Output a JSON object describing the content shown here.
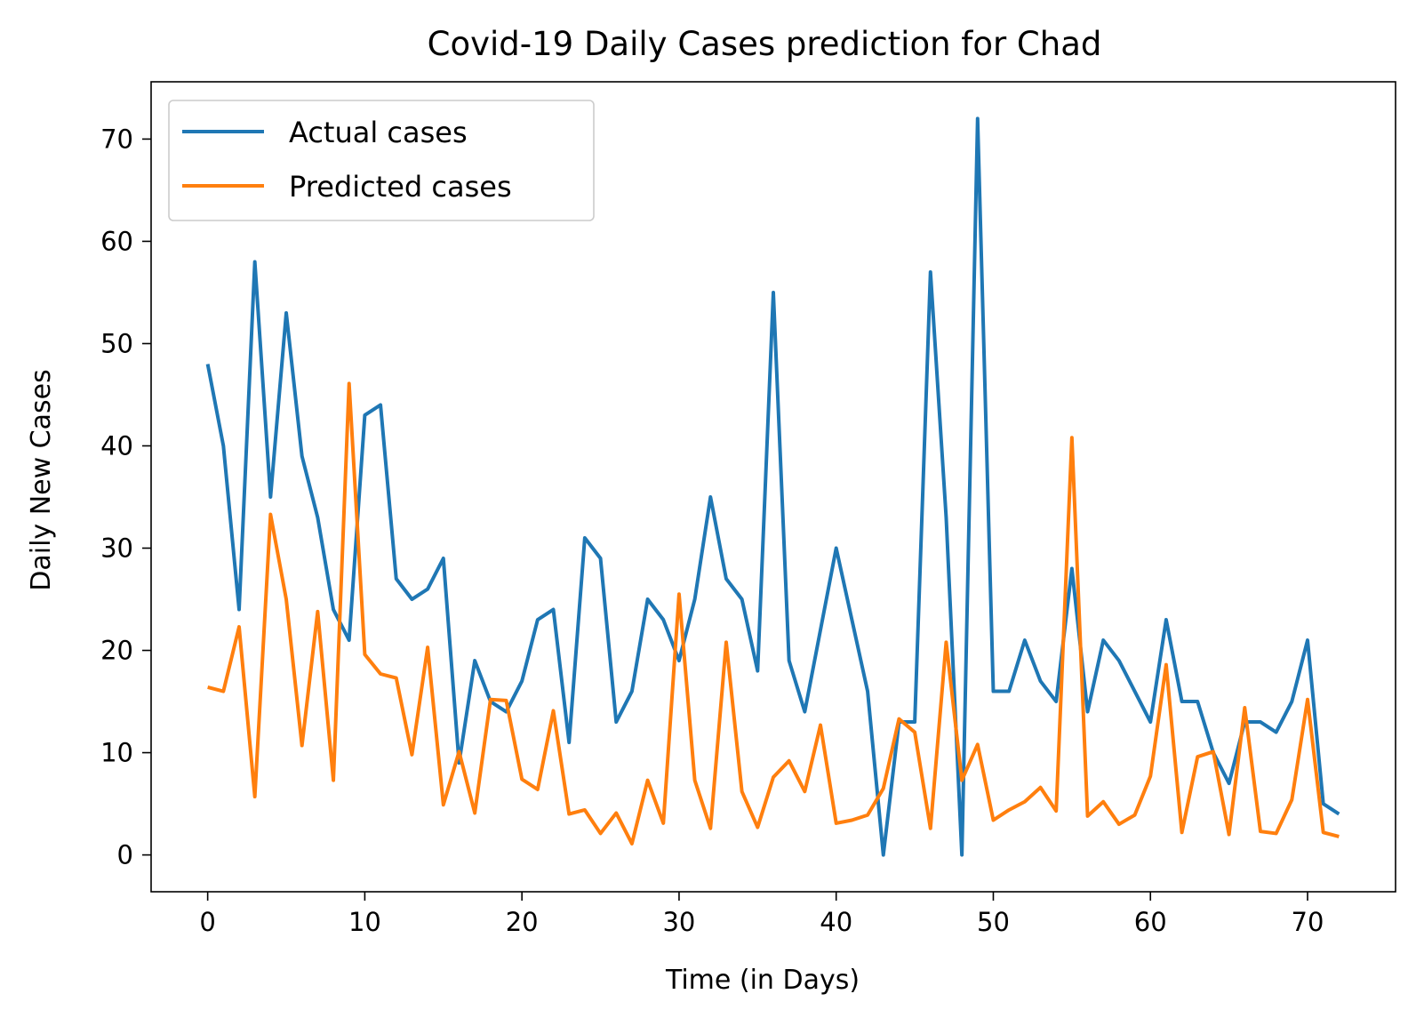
{
  "chart_data": {
    "type": "line",
    "title": "Covid-19 Daily Cases prediction for Chad",
    "xlabel": "Time (in Days)",
    "ylabel": "Daily New Cases",
    "xlim": [
      -3.6,
      75.6
    ],
    "ylim": [
      -3.6,
      75.6
    ],
    "xticks": [
      0,
      10,
      20,
      30,
      40,
      50,
      60,
      70
    ],
    "yticks": [
      0,
      10,
      20,
      30,
      40,
      50,
      60,
      70
    ],
    "grid": false,
    "legend_position": "top-left",
    "series": [
      {
        "name": "Actual cases",
        "color": "#1f77b4",
        "values": [
          48,
          40,
          24,
          58,
          35,
          53,
          39,
          33,
          24,
          21,
          43,
          44,
          27,
          25,
          26,
          29,
          9,
          19,
          15,
          14,
          17,
          23,
          24,
          11,
          31,
          29,
          13,
          16,
          25,
          23,
          19,
          25,
          35,
          27,
          25,
          18,
          55,
          19,
          14,
          22,
          30,
          23,
          16,
          0,
          13,
          13,
          57,
          33,
          0,
          72,
          16,
          16,
          21,
          17,
          15,
          28,
          14,
          21,
          19,
          16,
          13,
          23,
          15,
          15,
          10,
          7,
          13,
          13,
          12,
          15,
          21,
          5,
          4
        ]
      },
      {
        "name": "Predicted cases",
        "color": "#ff7f0e",
        "values": [
          16.4,
          16,
          22.3,
          5.7,
          33.3,
          25,
          10.7,
          23.8,
          7.3,
          46.1,
          19.6,
          17.7,
          17.3,
          9.8,
          20.3,
          4.9,
          10.1,
          4.1,
          15.2,
          15.1,
          7.4,
          6.4,
          14.1,
          4,
          4.4,
          2.1,
          4.1,
          1.1,
          7.3,
          3.1,
          25.5,
          7.3,
          2.6,
          20.8,
          6.2,
          2.7,
          7.6,
          9.2,
          6.2,
          12.7,
          3.1,
          3.4,
          3.9,
          6.5,
          13.3,
          12,
          2.6,
          20.8,
          7.3,
          10.8,
          3.4,
          4.4,
          5.2,
          6.6,
          4.3,
          40.8,
          3.8,
          5.2,
          3,
          3.9,
          7.7,
          18.6,
          2.2,
          9.6,
          10.1,
          2,
          14.4,
          2.3,
          2.1,
          5.4,
          15.2,
          2.2,
          1.8
        ]
      }
    ]
  }
}
